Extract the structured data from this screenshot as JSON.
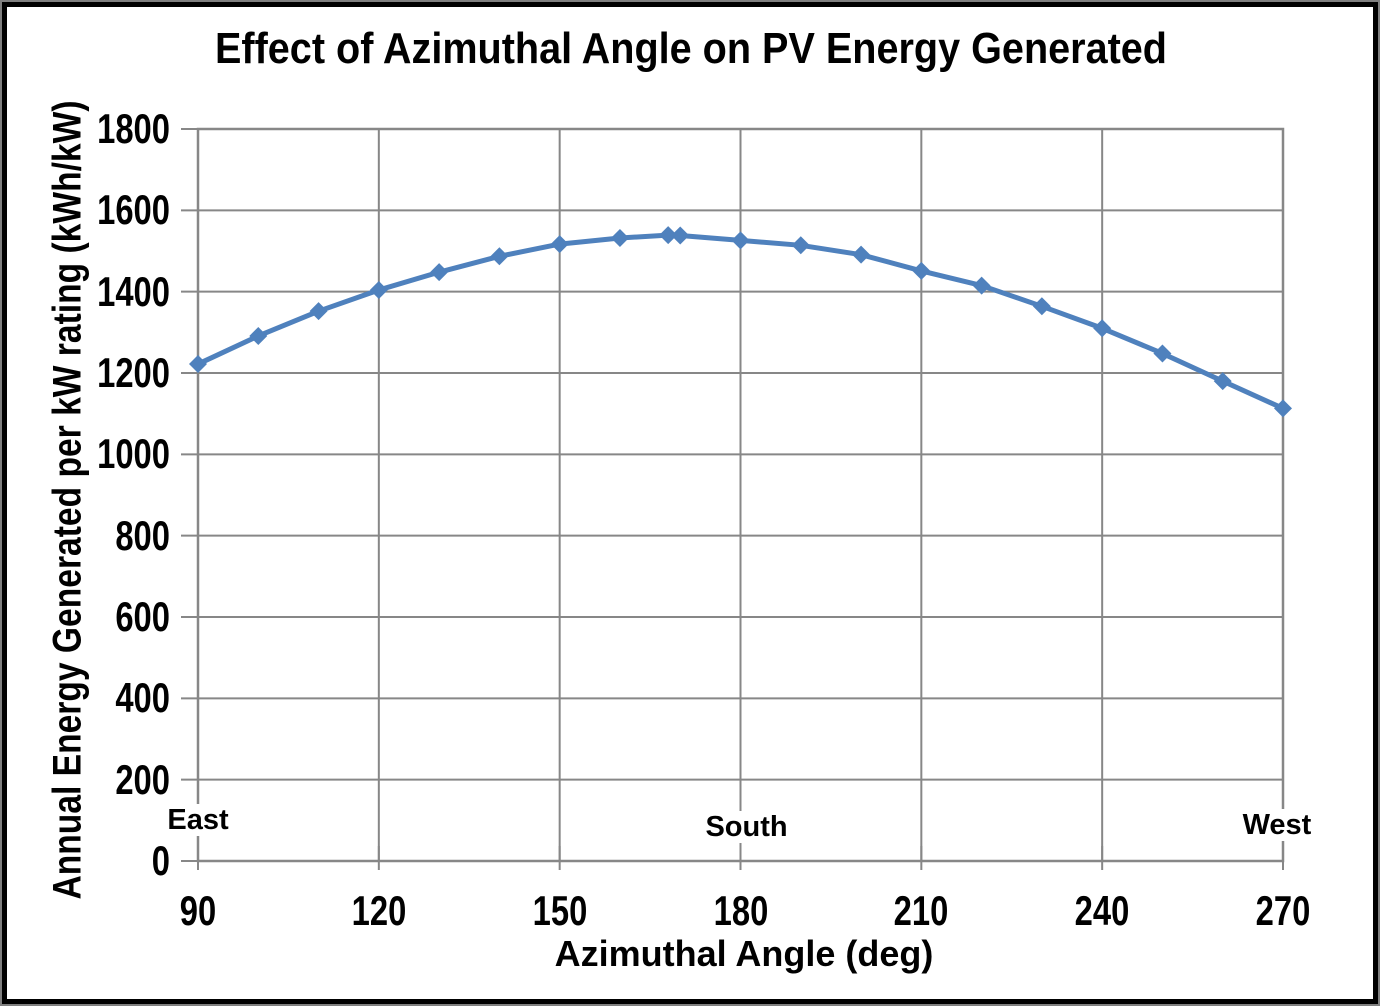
{
  "chart_data": {
    "type": "line",
    "title": "Effect of Azimuthal Angle on PV Energy Generated",
    "xlabel": "Azimuthal Angle (deg)",
    "ylabel": "Annual Energy Generated per kW rating (kWh/kW)",
    "x": [
      90,
      100,
      110,
      120,
      130,
      140,
      150,
      160,
      168,
      170,
      180,
      190,
      200,
      210,
      220,
      230,
      240,
      250,
      260,
      270
    ],
    "y": [
      1222,
      1291,
      1352,
      1404,
      1448,
      1487,
      1517,
      1532,
      1539,
      1538,
      1526,
      1514,
      1491,
      1451,
      1415,
      1364,
      1310,
      1248,
      1180,
      1113
    ],
    "xlim": [
      90,
      270
    ],
    "ylim": [
      0,
      1800
    ],
    "x_ticks": [
      90,
      120,
      150,
      180,
      210,
      240,
      270
    ],
    "y_ticks": [
      0,
      200,
      400,
      600,
      800,
      1000,
      1200,
      1400,
      1600,
      1800
    ],
    "grid": true,
    "legend": "none",
    "marker": "diamond",
    "colors": {
      "series": "#4F81BD",
      "grid": "#878787",
      "text": "#000000",
      "plot_background": "#ffffff"
    },
    "annotations": [
      {
        "text": "East",
        "x": 90,
        "y": 100
      },
      {
        "text": "South",
        "x": 181,
        "y": 84
      },
      {
        "text": "West",
        "x": 269,
        "y": 88
      }
    ]
  }
}
